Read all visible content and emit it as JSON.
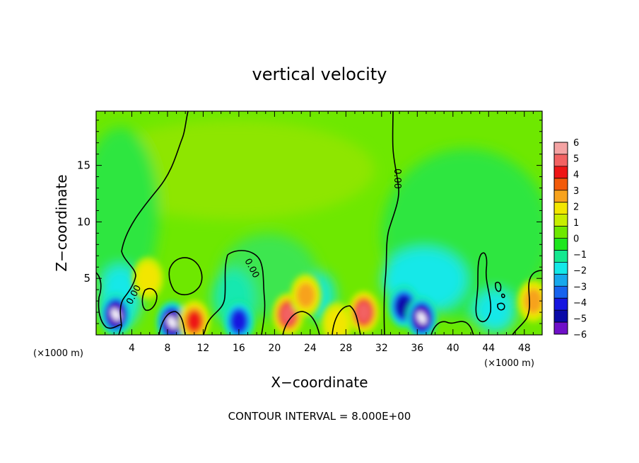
{
  "chart_data": {
    "type": "heatmap",
    "title": "vertical velocity",
    "xlabel": "X−coordinate",
    "ylabel": "Z−coordinate",
    "x_unit": "(×1000 m)",
    "x_unit_right": "(×1000 m)",
    "footer": "CONTOUR INTERVAL = 8.000E+00",
    "xlim": [
      0,
      50
    ],
    "ylim": [
      0,
      19.8
    ],
    "x_ticks": [
      "4",
      "8",
      "12",
      "16",
      "20",
      "24",
      "28",
      "32",
      "36",
      "40",
      "44",
      "48"
    ],
    "x_tick_values": [
      4,
      8,
      12,
      16,
      20,
      24,
      28,
      32,
      36,
      40,
      44,
      48
    ],
    "y_ticks": [
      "5",
      "10",
      "15"
    ],
    "y_tick_values": [
      5,
      10,
      15
    ],
    "contour_label": "0.00",
    "colorbar": {
      "range": [
        -6,
        6
      ],
      "ticks": [
        "6",
        "5",
        "4",
        "3",
        "2",
        "1",
        "0",
        "−1",
        "−2",
        "−3",
        "−4",
        "−5",
        "−6"
      ],
      "colors": [
        "#f4a3a3",
        "#f26262",
        "#ee1515",
        "#f25a0a",
        "#f7a21c",
        "#f2e600",
        "#c8ee00",
        "#6ee800",
        "#1ee61e",
        "#14e890",
        "#14e8e8",
        "#17a8ec",
        "#1763ee",
        "#1616e0",
        "#0a0aa8",
        "#6f10c8"
      ]
    },
    "features": [
      {
        "x": 2.2,
        "z": 1.8,
        "v": -5.5
      },
      {
        "x": 8.5,
        "z": 1.1,
        "v": -6
      },
      {
        "x": 11.0,
        "z": 1.2,
        "v": 4
      },
      {
        "x": 16.0,
        "z": 1.2,
        "v": -4
      },
      {
        "x": 21.5,
        "z": 1.8,
        "v": 5
      },
      {
        "x": 23.5,
        "z": 3.5,
        "v": 3
      },
      {
        "x": 30.0,
        "z": 2.0,
        "v": 4.5
      },
      {
        "x": 34.5,
        "z": 2.5,
        "v": -5
      },
      {
        "x": 36.5,
        "z": 1.5,
        "v": -6
      },
      {
        "x": 5.8,
        "z": 5.0,
        "v": 2
      },
      {
        "x": 49.0,
        "z": 3.0,
        "v": 3
      },
      {
        "x": 27.0,
        "z": 1.0,
        "v": 2
      }
    ]
  }
}
